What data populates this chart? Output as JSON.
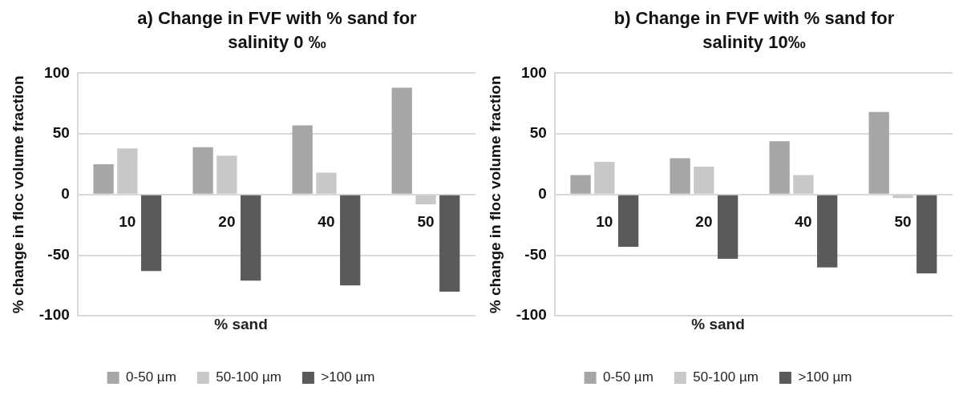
{
  "chart_data": [
    {
      "type": "bar",
      "title": "a) Change in FVF with % sand for salinity 0 ‰",
      "xlabel": "% sand",
      "ylabel": "% change in floc volume fraction",
      "categories": [
        "10",
        "20",
        "40",
        "50"
      ],
      "series": [
        {
          "name": "0-50 µm",
          "color": "#a6a6a6",
          "values": [
            25,
            39,
            57,
            88
          ]
        },
        {
          "name": "50-100 µm",
          "color": "#c8c8c8",
          "values": [
            38,
            32,
            18,
            -8
          ]
        },
        {
          "name": ">100 µm",
          "color": "#5a5a5a",
          "values": [
            -63,
            -71,
            -75,
            -80
          ]
        }
      ],
      "ylim": [
        -100,
        100
      ],
      "yticks": [
        -100,
        -50,
        0,
        50,
        100
      ],
      "grid": "y",
      "legend": "bottom"
    },
    {
      "type": "bar",
      "title": "b) Change in FVF with % sand for salinity 10‰",
      "xlabel": "% sand",
      "ylabel": "% change in floc volume fraction",
      "categories": [
        "10",
        "20",
        "40",
        "50"
      ],
      "series": [
        {
          "name": "0-50 µm",
          "color": "#a6a6a6",
          "values": [
            16,
            30,
            44,
            68
          ]
        },
        {
          "name": "50-100 µm",
          "color": "#c8c8c8",
          "values": [
            27,
            23,
            16,
            -3
          ]
        },
        {
          "name": ">100 µm",
          "color": "#5a5a5a",
          "values": [
            -43,
            -53,
            -60,
            -65
          ]
        }
      ],
      "ylim": [
        -100,
        100
      ],
      "yticks": [
        -100,
        -50,
        0,
        50,
        100
      ],
      "grid": "y",
      "legend": "bottom"
    }
  ]
}
